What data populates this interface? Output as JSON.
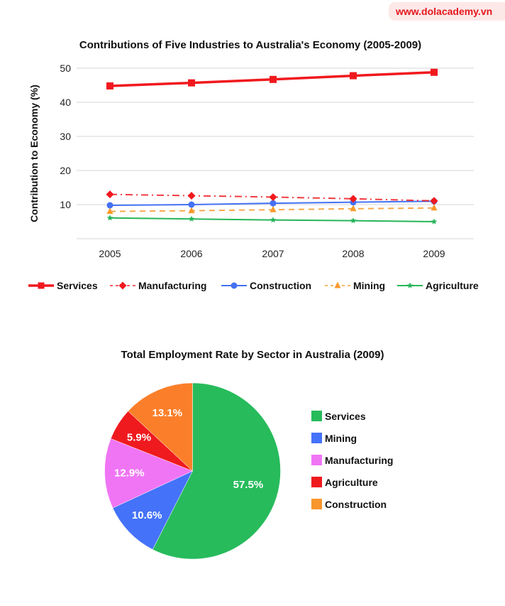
{
  "watermark": {
    "text": "www.dolacademy.vn"
  },
  "chart_data": [
    {
      "type": "line",
      "title": "Contributions of Five Industries to Australia's Economy (2005-2009)",
      "xlabel": "",
      "ylabel": "Contribution to Economy (%)",
      "ylim": [
        0,
        50
      ],
      "yticks": [
        10,
        20,
        30,
        40,
        50
      ],
      "grid": true,
      "legend_position": "bottom",
      "categories": [
        "2005",
        "2006",
        "2007",
        "2008",
        "2009"
      ],
      "series": [
        {
          "name": "Services",
          "color": "#f0191e",
          "marker": "square",
          "dash": "solid",
          "values": [
            44.8,
            45.7,
            46.7,
            47.8,
            48.8
          ]
        },
        {
          "name": "Manufacturing",
          "color": "#f0191e",
          "marker": "diamond",
          "dash": "dashdot",
          "values": [
            13.0,
            12.6,
            12.2,
            11.7,
            11.1
          ]
        },
        {
          "name": "Construction",
          "color": "#4472f4",
          "marker": "circle",
          "dash": "solid",
          "values": [
            9.8,
            10.0,
            10.4,
            10.7,
            11.0
          ]
        },
        {
          "name": "Mining",
          "color": "#f89a2c",
          "marker": "triangle",
          "dash": "dashed",
          "values": [
            8.0,
            8.2,
            8.5,
            8.8,
            9.0
          ]
        },
        {
          "name": "Agriculture",
          "color": "#27b55a",
          "marker": "star",
          "dash": "solid",
          "values": [
            6.1,
            5.8,
            5.5,
            5.3,
            5.0
          ]
        }
      ]
    },
    {
      "type": "pie",
      "title": "Total Employment Rate by Sector in Australia (2009)",
      "legend_position": "right",
      "slices": [
        {
          "name": "Services",
          "value": 57.5,
          "label": "57.5%",
          "color": "#27bb5c"
        },
        {
          "name": "Mining",
          "value": 10.6,
          "label": "10.6%",
          "color": "#4472f9"
        },
        {
          "name": "Manufacturing",
          "value": 12.9,
          "label": "12.9%",
          "color": "#f075f5"
        },
        {
          "name": "Agriculture",
          "value": 5.9,
          "label": "5.9%",
          "color": "#ef1a1e"
        },
        {
          "name": "Construction",
          "value": 13.1,
          "label": "13.1%",
          "color": "#fb7f2a"
        }
      ],
      "legend_order": [
        "Services",
        "Mining",
        "Manufacturing",
        "Agriculture",
        "Construction"
      ],
      "legend_colors": [
        "#27bb5c",
        "#4472f9",
        "#f075f5",
        "#ef1a1e",
        "#f7962c"
      ]
    }
  ]
}
